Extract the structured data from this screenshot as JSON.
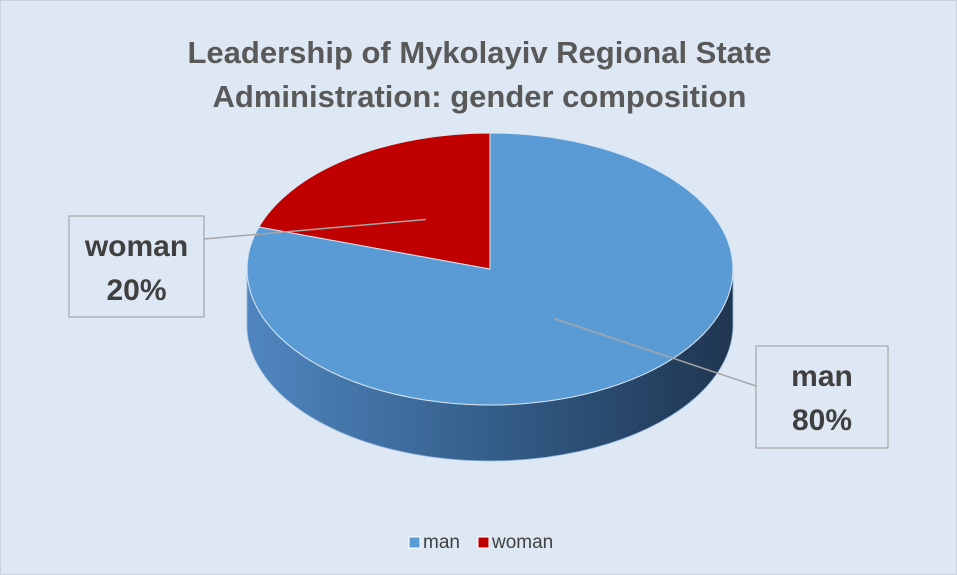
{
  "chart_data": {
    "type": "pie",
    "title": "Leadership of Mykolayiv Regional State Administration: gender composition",
    "categories": [
      "man",
      "woman"
    ],
    "values": [
      80,
      20
    ],
    "value_labels": [
      "80%",
      "20%"
    ],
    "colors": [
      "#5b9bd5",
      "#c00000"
    ],
    "legend": "bottom"
  }
}
